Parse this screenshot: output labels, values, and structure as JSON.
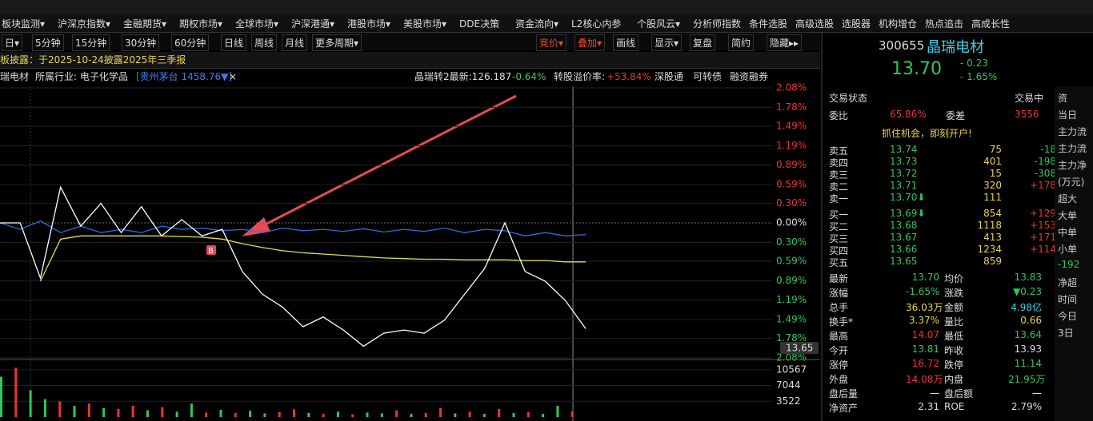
{
  "menu": [
    "板块监测▾",
    "沪深京指数▾",
    "金融期货▾",
    "期权市场▾",
    "全球市场▾",
    "沪深港通▾",
    "港股市场▾",
    "美股市场▾",
    "DDE决策",
    "资金流向▾",
    "L2核心内参",
    "个股风云▾",
    "分析师指数",
    "条件选股",
    "高级选股",
    "选股器",
    "机构增仓",
    "热点追击",
    "高成长性"
  ],
  "toolbar": {
    "left": [
      "日▾",
      "5分钟",
      "15分钟",
      "30分钟",
      "60分钟",
      "日线",
      "周线",
      "月线",
      "更多周期▾"
    ],
    "right": [
      "竞价▾",
      "叠加▾",
      "画线",
      "显示▾",
      "复盘",
      "简约",
      "隐藏▸▸"
    ]
  },
  "notice": "板披露：于2025-10-24披露2025年三季报",
  "info_bar": {
    "left": [
      "瑞电材",
      "所属行业: 电子化学品",
      "[贵州茅台 1458.76▼]",
      "×"
    ],
    "right": [
      "晶瑞转2最新:126.187",
      "-0.64%",
      "转股溢价率:",
      "+53.84%",
      "深股通",
      "可转债",
      "融资融券"
    ]
  },
  "chart_data": [
    {
      "type": "line",
      "ylim": [
        -2.08,
        2.08
      ],
      "yticks": [
        {
          "value": 2.08,
          "label": "2.08%"
        },
        {
          "value": 1.78,
          "label": "1.78%"
        },
        {
          "value": 1.49,
          "label": "1.49%"
        },
        {
          "value": 1.19,
          "label": "1.19%"
        },
        {
          "value": 0.89,
          "label": "0.89%"
        },
        {
          "value": 0.59,
          "label": "0.59%"
        },
        {
          "value": 0.3,
          "label": "0.30%"
        },
        {
          "value": 0,
          "label": "0.00%"
        },
        {
          "value": -0.3,
          "label": "0.30%"
        },
        {
          "value": -0.59,
          "label": "0.59%"
        },
        {
          "value": -0.89,
          "label": "0.89%"
        },
        {
          "value": -1.19,
          "label": "1.19%"
        },
        {
          "value": -1.49,
          "label": "1.49%"
        },
        {
          "value": -1.78,
          "label": "1.78%"
        },
        {
          "value": -2.08,
          "label": "2.08%"
        }
      ],
      "series": [
        {
          "color": "#ffffff",
          "values": [
            0,
            0,
            -0.85,
            0.55,
            -0.05,
            0.3,
            -0.15,
            0.25,
            -0.2,
            0.05,
            -0.2,
            -0.1,
            -0.75,
            -1.1,
            -1.3,
            -1.6,
            -1.45,
            -1.65,
            -1.9,
            -1.7,
            -1.65,
            -1.7,
            -1.5,
            -1.1,
            -0.7,
            0.0,
            -0.75,
            -0.9,
            -1.2,
            -1.63
          ]
        },
        {
          "color": "#e6e04a",
          "values": [
            null,
            null,
            -0.9,
            -0.25,
            -0.2,
            -0.2,
            -0.2,
            -0.2,
            -0.2,
            -0.21,
            -0.22,
            -0.25,
            -0.32,
            -0.38,
            -0.43,
            -0.46,
            -0.48,
            -0.5,
            -0.52,
            -0.54,
            -0.55,
            -0.56,
            -0.56,
            -0.57,
            -0.57,
            -0.57,
            -0.58,
            -0.58,
            -0.6,
            -0.6
          ]
        },
        {
          "color": "#2a6fd6",
          "values": [
            0,
            -0.1,
            0.03,
            -0.15,
            -0.05,
            -0.15,
            -0.1,
            -0.15,
            -0.05,
            -0.1,
            -0.08,
            -0.12,
            -0.1,
            -0.15,
            -0.08,
            -0.12,
            -0.1,
            -0.13,
            -0.09,
            -0.14,
            -0.1,
            -0.13,
            -0.08,
            -0.15,
            -0.1,
            -0.12,
            -0.2,
            -0.15,
            -0.2,
            -0.18
          ]
        }
      ],
      "last_price_label": "13.65",
      "marker": "B"
    },
    {
      "type": "bar",
      "ylim": [
        0,
        12500
      ],
      "yticks": [
        10567,
        7044,
        3522
      ],
      "values": [
        9000,
        11000,
        6000,
        4000,
        3500,
        2500,
        3000,
        2000,
        1800,
        2500,
        1500,
        2200,
        1200,
        3000,
        1000,
        1600,
        900,
        1400,
        800,
        1100,
        1700,
        900,
        700,
        1200,
        600,
        1000,
        800,
        1500,
        700,
        900,
        2000,
        800,
        1200,
        700,
        1800,
        900,
        1100,
        700,
        2500,
        1300
      ],
      "colors": [
        "#2fc75f",
        "#e33",
        "#2fc75f",
        "#2fc75f",
        "#e33",
        "#2fc75f",
        "#e33",
        "#2fc75f",
        "#e33",
        "#e33",
        "#2fc75f",
        "#e33",
        "#2fc75f",
        "#2fc75f",
        "#e33",
        "#2fc75f",
        "#e33",
        "#2fc75f",
        "#2fc75f",
        "#e33",
        "#e33",
        "#2fc75f",
        "#e33",
        "#2fc75f",
        "#e33",
        "#2fc75f",
        "#2fc75f",
        "#e33",
        "#2fc75f",
        "#e33",
        "#e33",
        "#2fc75f",
        "#e33",
        "#2fc75f",
        "#e33",
        "#2fc75f",
        "#e33",
        "#2fc75f",
        "#2fc75f",
        "#e33"
      ]
    }
  ],
  "quote": {
    "code": "300655",
    "name": "晶瑞电材",
    "price": "13.70",
    "change": "- 0.23",
    "pct": "- 1.65%"
  },
  "status": {
    "label": "交易状态",
    "value": "交易中"
  },
  "weibi": [
    "委比",
    "65.86%",
    "委差",
    "3556"
  ],
  "promo": "抓住机会，即刻开户!",
  "order_book": {
    "sell": [
      [
        "卖五",
        "13.74",
        "75",
        "-18"
      ],
      [
        "卖四",
        "13.73",
        "401",
        "-198"
      ],
      [
        "卖三",
        "13.72",
        "15",
        "-308"
      ],
      [
        "卖二",
        "13.71",
        "320",
        "+178"
      ],
      [
        "卖一",
        "13.70⬇",
        "111"
      ]
    ],
    "buy": [
      [
        "买一",
        "13.69⬇",
        "854",
        "+129"
      ],
      [
        "买二",
        "13.68",
        "1118",
        "+153"
      ],
      [
        "买三",
        "13.67",
        "413",
        "+171"
      ],
      [
        "买四",
        "13.66",
        "1234",
        "+114"
      ],
      [
        "买五",
        "13.65",
        "859"
      ]
    ]
  },
  "stats": [
    [
      {
        "t": "最新"
      },
      {
        "t": "13.70",
        "c": "#2fc75f"
      },
      {
        "t": "均价"
      },
      {
        "t": "13.83",
        "c": "#2fc75f"
      }
    ],
    [
      {
        "t": "涨幅"
      },
      {
        "t": "-1.65%",
        "c": "#2fc75f"
      },
      {
        "t": "涨跌"
      },
      {
        "t": "▼0.23",
        "c": "#2fc75f"
      }
    ],
    [
      {
        "t": "总手"
      },
      {
        "t": "36.03万",
        "c": "#e8d44d"
      },
      {
        "t": "金额"
      },
      {
        "t": "4.98亿",
        "c": "#3ad3e8"
      }
    ],
    [
      {
        "t": "换手*"
      },
      {
        "t": "3.37%",
        "c": "#e8d44d"
      },
      {
        "t": "量比"
      },
      {
        "t": "0.66",
        "c": "#e8d44d"
      }
    ],
    [
      {
        "t": "最高"
      },
      {
        "t": "14.07",
        "c": "#e33"
      },
      {
        "t": "最低"
      },
      {
        "t": "13.64",
        "c": "#2fc75f"
      }
    ],
    [
      {
        "t": "今开"
      },
      {
        "t": "13.81",
        "c": "#2fc75f"
      },
      {
        "t": "昨收"
      },
      {
        "t": "13.93",
        "c": "#ddd"
      }
    ],
    [
      {
        "t": "涨停"
      },
      {
        "t": "16.72",
        "c": "#e33"
      },
      {
        "t": "跌停"
      },
      {
        "t": "11.14",
        "c": "#2fc75f"
      }
    ],
    [
      {
        "t": "外盘"
      },
      {
        "t": "14.08万",
        "c": "#e33"
      },
      {
        "t": "内盘"
      },
      {
        "t": "21.95万",
        "c": "#2fc75f"
      }
    ],
    [
      {
        "t": "盘后量"
      },
      {
        "t": "一",
        "c": "#ddd"
      },
      {
        "t": "盘后额"
      },
      {
        "t": "一",
        "c": "#ddd"
      }
    ],
    [
      {
        "t": "净资产"
      },
      {
        "t": "2.31",
        "c": "#ddd"
      },
      {
        "t": "ROE"
      },
      {
        "t": "2.79%",
        "c": "#ddd"
      }
    ]
  ],
  "side_column": [
    "资",
    "当日",
    "主力流",
    "主力流",
    "主力净",
    "(万元)",
    "超大",
    "大单",
    "中单",
    "小单",
    "-192",
    "净超",
    "时间",
    "今日",
    "3日"
  ]
}
